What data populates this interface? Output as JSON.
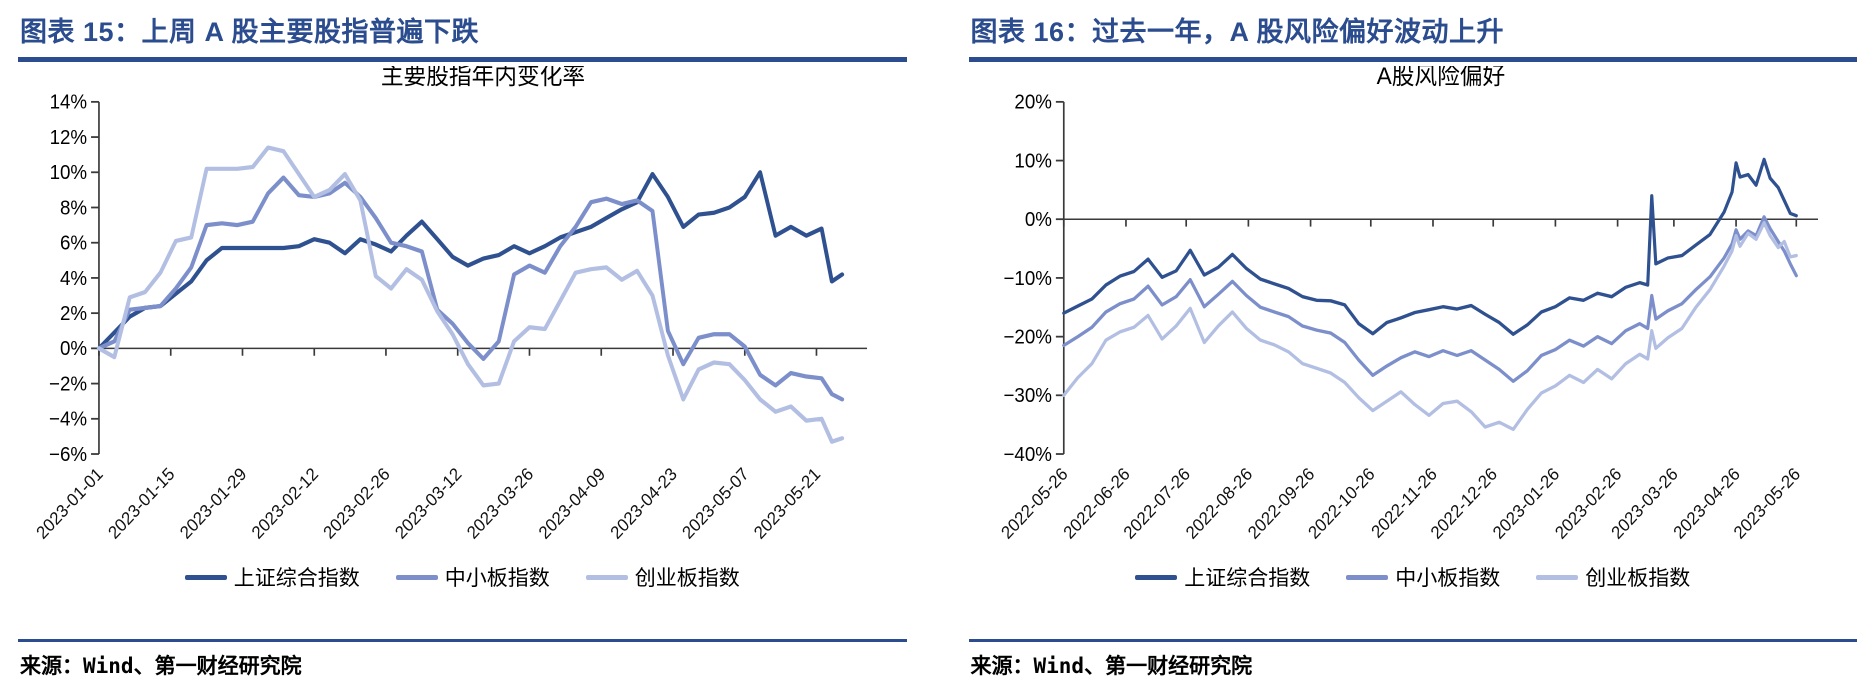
{
  "colors": {
    "accent": "#2B4C8E",
    "header_text": "#2B4C8E",
    "axis": "#3a3a3a",
    "series_dark": "#2F5190",
    "series_medium": "#7C8FCB",
    "series_light": "#B2BFE3"
  },
  "panels": [
    {
      "header": "图表 15：上周 A 股主要股指普遍下跌",
      "source": "来源：Wind、第一财经研究院"
    },
    {
      "header": "图表 16：过去一年，A 股风险偏好波动上升",
      "source": "来源：Wind、第一财经研究院"
    }
  ],
  "chart_data": [
    {
      "type": "line",
      "title": "主要股指年内变化率",
      "y_unit": "%",
      "ylim": [
        -6,
        14
      ],
      "grid": false,
      "legend_position": "bottom",
      "ytick_vals": [
        14,
        12,
        10,
        8,
        6,
        4,
        2,
        0,
        -2,
        -4,
        -6
      ],
      "ytick_labels": [
        "14%",
        "12%",
        "10%",
        "8%",
        "6%",
        "4%",
        "2%",
        "0%",
        "−2%",
        "−4%",
        "−6%"
      ],
      "xtick_labels": [
        "2023-01-01",
        "2023-01-15",
        "2023-01-29",
        "2023-02-12",
        "2023-02-26",
        "2023-03-12",
        "2023-03-26",
        "2023-04-09",
        "2023-04-23",
        "2023-05-07",
        "2023-05-21"
      ],
      "xtick_days": [
        0,
        14,
        28,
        42,
        56,
        70,
        84,
        98,
        112,
        126,
        140
      ],
      "x_max_day": 146,
      "x_days": [
        0,
        3,
        6,
        9,
        12,
        15,
        18,
        21,
        24,
        27,
        30,
        33,
        36,
        39,
        42,
        45,
        48,
        51,
        54,
        57,
        60,
        63,
        66,
        69,
        72,
        75,
        78,
        81,
        84,
        87,
        90,
        93,
        96,
        99,
        102,
        105,
        108,
        111,
        114,
        117,
        120,
        123,
        126,
        129,
        132,
        135,
        138,
        141,
        143,
        145
      ],
      "series": [
        {
          "name": "上证综合指数",
          "color": "#2F5190",
          "values": [
            0.0,
            0.9,
            1.8,
            2.3,
            2.4,
            3.1,
            3.8,
            5.0,
            5.7,
            5.7,
            5.7,
            5.7,
            5.7,
            5.8,
            6.2,
            6.0,
            5.4,
            6.2,
            5.9,
            5.5,
            6.4,
            7.2,
            6.2,
            5.2,
            4.7,
            5.1,
            5.3,
            5.8,
            5.4,
            5.8,
            6.3,
            6.6,
            6.9,
            7.4,
            7.9,
            8.3,
            9.9,
            8.6,
            6.9,
            7.6,
            7.7,
            8.0,
            8.6,
            10.0,
            6.4,
            6.9,
            6.4,
            6.8,
            3.8,
            4.2
          ]
        },
        {
          "name": "中小板指数",
          "color": "#7C8FCB",
          "values": [
            0.0,
            0.4,
            2.2,
            2.3,
            2.4,
            3.4,
            4.6,
            7.0,
            7.1,
            7.0,
            7.2,
            8.8,
            9.7,
            8.7,
            8.6,
            8.8,
            9.4,
            8.6,
            7.4,
            6.0,
            5.8,
            5.5,
            2.2,
            1.4,
            0.3,
            -0.6,
            0.4,
            4.2,
            4.7,
            4.3,
            5.8,
            6.9,
            8.3,
            8.5,
            8.2,
            8.4,
            7.8,
            1.0,
            -0.9,
            0.6,
            0.8,
            0.8,
            0.1,
            -1.5,
            -2.1,
            -1.4,
            -1.6,
            -1.7,
            -2.6,
            -2.9
          ]
        },
        {
          "name": "创业板指数",
          "color": "#B2BFE3",
          "values": [
            0.0,
            -0.5,
            2.9,
            3.2,
            4.3,
            6.1,
            6.3,
            10.2,
            10.2,
            10.2,
            10.3,
            11.4,
            11.2,
            9.9,
            8.6,
            9.0,
            9.9,
            8.4,
            4.1,
            3.4,
            4.5,
            3.9,
            2.1,
            0.8,
            -0.9,
            -2.1,
            -2.0,
            0.4,
            1.2,
            1.1,
            2.7,
            4.3,
            4.5,
            4.6,
            3.9,
            4.4,
            3.0,
            -0.4,
            -2.9,
            -1.2,
            -0.8,
            -0.9,
            -1.8,
            -2.9,
            -3.6,
            -3.3,
            -4.1,
            -4.0,
            -5.3,
            -5.1
          ]
        }
      ]
    },
    {
      "type": "line",
      "title": "A股风险偏好",
      "y_unit": "%",
      "ylim": [
        -40,
        20
      ],
      "grid": false,
      "legend_position": "bottom",
      "ytick_vals": [
        20,
        10,
        0,
        -10,
        -20,
        -30,
        -40
      ],
      "ytick_labels": [
        "20%",
        "10%",
        "0%",
        "−10%",
        "−20%",
        "−30%",
        "−40%"
      ],
      "xtick_labels": [
        "2022-05-26",
        "2022-06-26",
        "2022-07-26",
        "2022-08-26",
        "2022-09-26",
        "2022-10-26",
        "2022-11-26",
        "2022-12-26",
        "2023-01-26",
        "2023-02-26",
        "2023-03-26",
        "2023-04-26",
        "2023-05-26"
      ],
      "xtick_days": [
        0,
        31,
        61,
        92,
        123,
        153,
        184,
        214,
        245,
        276,
        304,
        335,
        365
      ],
      "x_max_day": 366,
      "x_days": [
        0,
        7,
        14,
        21,
        28,
        35,
        42,
        49,
        56,
        63,
        70,
        77,
        84,
        91,
        98,
        105,
        112,
        119,
        126,
        133,
        140,
        147,
        154,
        161,
        168,
        175,
        182,
        189,
        196,
        203,
        210,
        217,
        224,
        231,
        238,
        245,
        252,
        259,
        266,
        273,
        280,
        287,
        291,
        293,
        295,
        301,
        308,
        315,
        322,
        329,
        333,
        335,
        337,
        341,
        345,
        349,
        352,
        356,
        359,
        362,
        365
      ],
      "series": [
        {
          "name": "上证综合指数",
          "color": "#2F5190",
          "values": [
            -16.0,
            -14.8,
            -13.6,
            -11.2,
            -9.7,
            -8.9,
            -6.8,
            -9.9,
            -8.8,
            -5.3,
            -9.5,
            -8.2,
            -6.0,
            -8.4,
            -10.2,
            -11.0,
            -11.8,
            -13.2,
            -13.8,
            -13.9,
            -14.6,
            -17.8,
            -19.5,
            -17.6,
            -16.8,
            -15.9,
            -15.4,
            -14.9,
            -15.3,
            -14.7,
            -16.2,
            -17.6,
            -19.6,
            -18.0,
            -15.8,
            -14.9,
            -13.4,
            -13.8,
            -12.6,
            -13.2,
            -11.6,
            -10.8,
            -11.2,
            4.0,
            -7.6,
            -6.6,
            -6.2,
            -4.4,
            -2.6,
            1.2,
            4.6,
            9.6,
            7.2,
            7.6,
            5.8,
            10.2,
            7.0,
            5.4,
            3.2,
            1.0,
            0.6
          ]
        },
        {
          "name": "中小板指数",
          "color": "#7C8FCB",
          "values": [
            -21.5,
            -20.0,
            -18.4,
            -15.8,
            -14.4,
            -13.6,
            -11.4,
            -14.6,
            -13.2,
            -10.3,
            -14.9,
            -12.8,
            -10.6,
            -13.0,
            -15.0,
            -15.8,
            -16.6,
            -18.2,
            -18.9,
            -19.4,
            -21.0,
            -24.0,
            -26.6,
            -25.0,
            -23.6,
            -22.6,
            -23.4,
            -22.4,
            -23.2,
            -22.4,
            -24.0,
            -25.6,
            -27.6,
            -25.8,
            -23.2,
            -22.2,
            -20.6,
            -21.6,
            -20.0,
            -21.2,
            -19.0,
            -17.8,
            -18.6,
            -13.0,
            -17.0,
            -15.6,
            -14.4,
            -12.0,
            -9.8,
            -6.6,
            -4.2,
            -1.8,
            -3.4,
            -2.0,
            -2.8,
            0.4,
            -1.6,
            -3.8,
            -5.4,
            -7.6,
            -9.6
          ]
        },
        {
          "name": "创业板指数",
          "color": "#B2BFE3",
          "values": [
            -30.0,
            -27.0,
            -24.6,
            -20.6,
            -19.2,
            -18.4,
            -16.4,
            -20.4,
            -18.2,
            -15.2,
            -21.0,
            -18.2,
            -15.8,
            -18.6,
            -20.6,
            -21.4,
            -22.6,
            -24.6,
            -25.4,
            -26.2,
            -27.8,
            -30.4,
            -32.6,
            -31.0,
            -29.4,
            -31.6,
            -33.4,
            -31.4,
            -31.0,
            -32.8,
            -35.4,
            -34.6,
            -35.8,
            -32.4,
            -29.6,
            -28.4,
            -26.6,
            -27.8,
            -25.6,
            -27.2,
            -24.6,
            -23.0,
            -23.8,
            -19.0,
            -22.0,
            -20.2,
            -18.6,
            -15.0,
            -12.0,
            -8.0,
            -5.4,
            -2.8,
            -4.6,
            -2.4,
            -3.4,
            -0.6,
            -2.8,
            -4.8,
            -3.8,
            -6.4,
            -6.2
          ]
        }
      ]
    }
  ]
}
